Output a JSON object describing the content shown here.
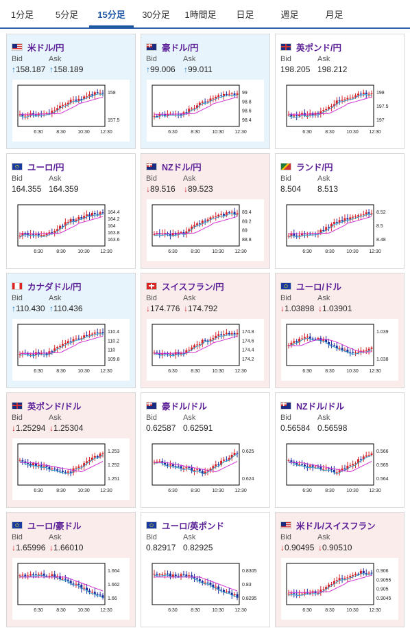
{
  "tabs": [
    "1分足",
    "5分足",
    "15分足",
    "30分足",
    "1時間足",
    "日足",
    "週足",
    "月足"
  ],
  "active_tab": 2,
  "bid_label": "Bid",
  "ask_label": "Ask",
  "x_ticks": [
    "6:30",
    "8:30",
    "10:30",
    "12:30"
  ],
  "colors": {
    "up_arrow": "#2a82c8",
    "down_arrow": "#d6232a",
    "candle_up": "#d6232a",
    "candle_down": "#1c2a9e",
    "ma1": "#30a0c8",
    "ma2": "#d030d0"
  },
  "pairs": [
    {
      "name": "米ドル/円",
      "flag": "us-flag-icon",
      "bg": "blue",
      "dir": "up",
      "bid": "158.187",
      "ask": "158.189",
      "y_ticks": [
        "158",
        "157.5"
      ],
      "trend": "up"
    },
    {
      "name": "豪ドル/円",
      "flag": "au-flag-icon",
      "bg": "blue",
      "dir": "up",
      "bid": "99.006",
      "ask": "99.011",
      "y_ticks": [
        "99",
        "98.8",
        "98.6",
        "98.4"
      ],
      "trend": "up"
    },
    {
      "name": "英ポンド/円",
      "flag": "gb-flag-icon",
      "bg": "white",
      "dir": "none",
      "bid": "198.205",
      "ask": "198.212",
      "y_ticks": [
        "198",
        "197.5",
        "197"
      ],
      "trend": "up"
    },
    {
      "name": "ユーロ/円",
      "flag": "eu-flag-icon",
      "bg": "white",
      "dir": "none",
      "bid": "164.355",
      "ask": "164.359",
      "y_ticks": [
        "164.4",
        "164.2",
        "164",
        "163.8",
        "163.6"
      ],
      "trend": "up"
    },
    {
      "name": "NZドル/円",
      "flag": "nz-flag-icon",
      "bg": "pink",
      "dir": "down",
      "bid": "89.516",
      "ask": "89.523",
      "y_ticks": [
        "89.4",
        "89.2",
        "89",
        "88.8"
      ],
      "trend": "up"
    },
    {
      "name": "ランド/円",
      "flag": "za-flag-icon",
      "bg": "white",
      "dir": "none",
      "bid": "8.504",
      "ask": "8.513",
      "y_ticks": [
        "8.52",
        "8.5",
        "8.48"
      ],
      "trend": "up"
    },
    {
      "name": "カナダドル/円",
      "flag": "ca-flag-icon",
      "bg": "blue",
      "dir": "up",
      "bid": "110.430",
      "ask": "110.436",
      "y_ticks": [
        "110.4",
        "110.2",
        "110",
        "109.8"
      ],
      "trend": "up"
    },
    {
      "name": "スイスフラン/円",
      "flag": "ch-flag-icon",
      "bg": "pink",
      "dir": "down",
      "bid": "174.776",
      "ask": "174.792",
      "y_ticks": [
        "174.8",
        "174.6",
        "174.4",
        "174.2"
      ],
      "trend": "up"
    },
    {
      "name": "ユーロ/ドル",
      "flag": "eu-flag-icon",
      "bg": "pink",
      "dir": "down",
      "bid": "1.03898",
      "ask": "1.03901",
      "y_ticks": [
        "1.039",
        "1.038"
      ],
      "trend": "flat"
    },
    {
      "name": "英ポンド/ドル",
      "flag": "gb-flag-icon",
      "bg": "pink",
      "dir": "down",
      "bid": "1.25294",
      "ask": "1.25304",
      "y_ticks": [
        "1.253",
        "1.252",
        "1.251"
      ],
      "trend": "vee"
    },
    {
      "name": "豪ドル/ドル",
      "flag": "au-flag-icon",
      "bg": "white",
      "dir": "none",
      "bid": "0.62587",
      "ask": "0.62591",
      "y_ticks": [
        "0.625",
        "0.624"
      ],
      "trend": "vee"
    },
    {
      "name": "NZドル/ドル",
      "flag": "nz-flag-icon",
      "bg": "white",
      "dir": "none",
      "bid": "0.56584",
      "ask": "0.56598",
      "y_ticks": [
        "0.566",
        "0.565",
        "0.564"
      ],
      "trend": "vee"
    },
    {
      "name": "ユーロ/豪ドル",
      "flag": "eu-flag-icon",
      "bg": "pink",
      "dir": "down",
      "bid": "1.65996",
      "ask": "1.66010",
      "y_ticks": [
        "1.664",
        "1.662",
        "1.66"
      ],
      "trend": "down"
    },
    {
      "name": "ユーロ/英ポンド",
      "flag": "eu-flag-icon",
      "bg": "white",
      "dir": "none",
      "bid": "0.82917",
      "ask": "0.82925",
      "y_ticks": [
        "0.8305",
        "0.83",
        "0.8295"
      ],
      "trend": "down"
    },
    {
      "name": "米ドル/スイスフラン",
      "flag": "us-flag-icon",
      "bg": "pink",
      "dir": "down",
      "bid": "0.90495",
      "ask": "0.90510",
      "y_ticks": [
        "0.906",
        "0.9055",
        "0.905",
        "0.9045"
      ],
      "trend": "up"
    }
  ]
}
